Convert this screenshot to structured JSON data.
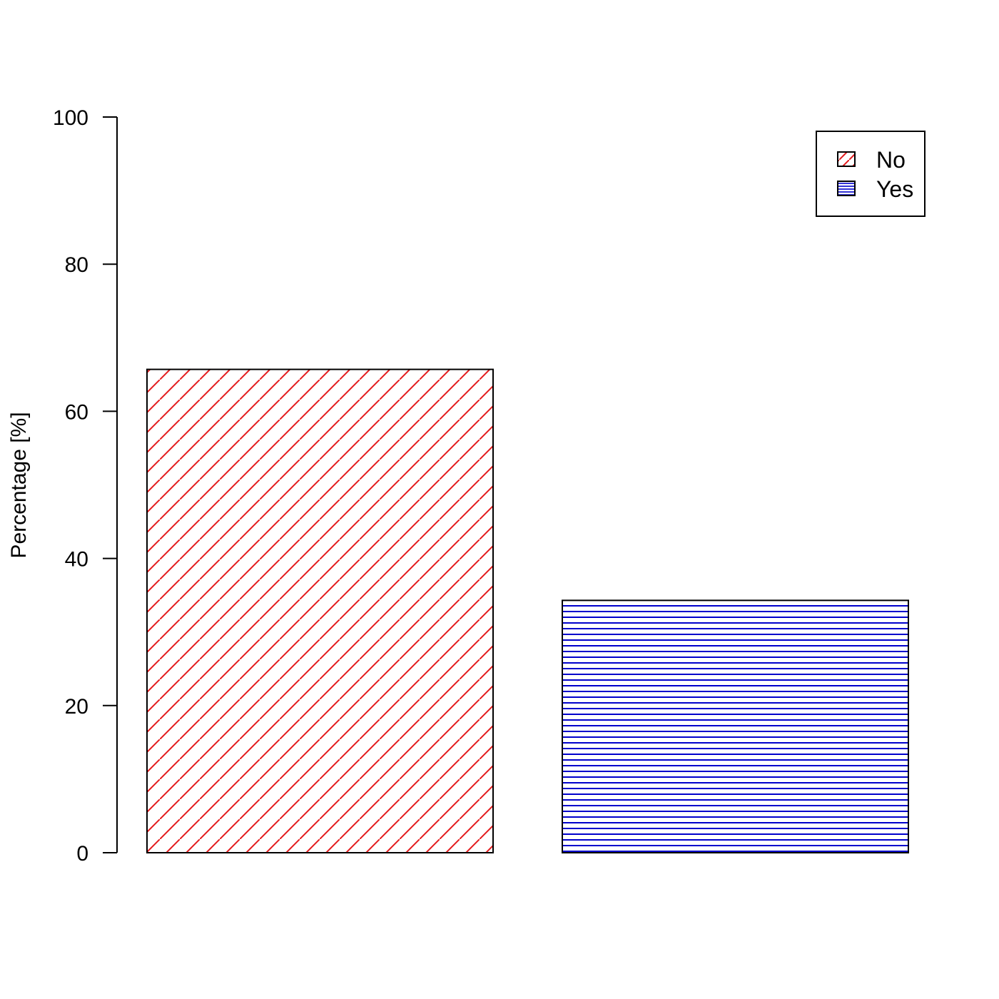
{
  "chart_data": {
    "type": "bar",
    "categories": [
      "No",
      "Yes"
    ],
    "values": [
      65.7,
      34.3
    ],
    "title": "",
    "xlabel": "",
    "ylabel": "Percentage [%]",
    "ylim": [
      0,
      100
    ],
    "yticks": [
      0,
      20,
      40,
      60,
      80,
      100
    ],
    "ytick_labels": [
      "0",
      "20",
      "40",
      "60",
      "80",
      "100"
    ],
    "grid": false,
    "legend": {
      "position": "top-right",
      "entries": [
        {
          "label": "No",
          "color": "#e41a1c",
          "pattern": "diagonal"
        },
        {
          "label": "Yes",
          "color": "#0000cc",
          "pattern": "horizontal"
        }
      ]
    },
    "bar_colors": [
      "#e41a1c",
      "#0000cc"
    ],
    "bar_patterns": [
      "diagonal",
      "horizontal"
    ]
  }
}
